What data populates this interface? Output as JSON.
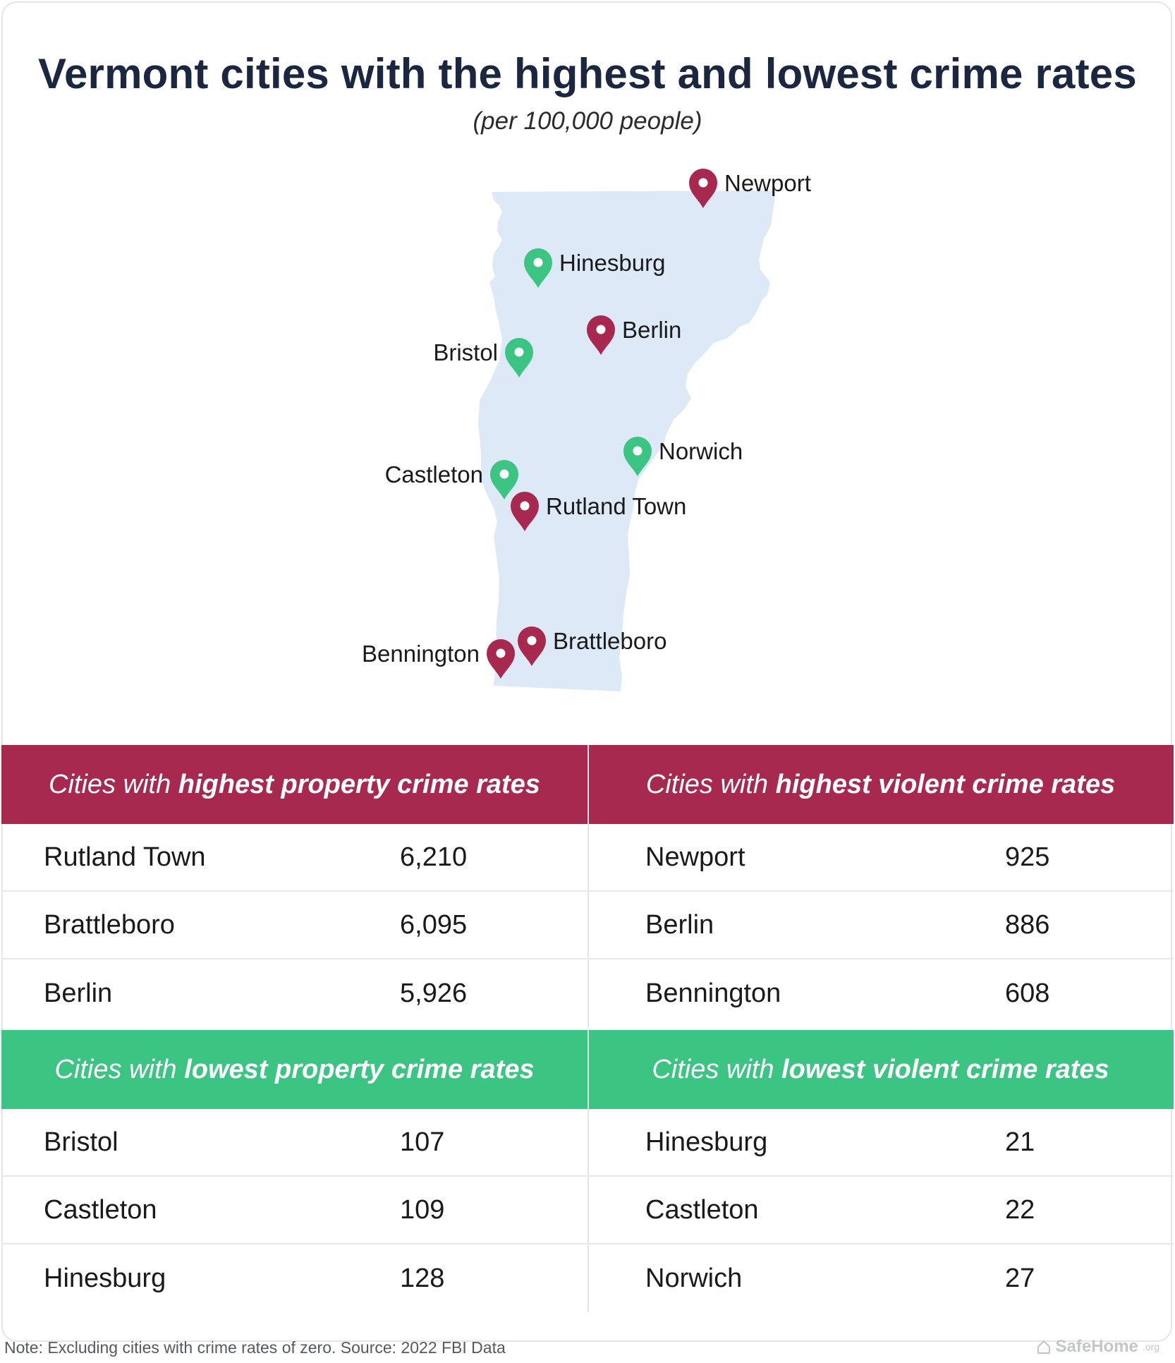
{
  "title": "Vermont cities with the highest and lowest crime rates",
  "subtitle": "(per 100,000 people)",
  "colors": {
    "high": "#a8294f",
    "low": "#3cc482",
    "state_fill": "#dde9f7",
    "title": "#1b2640"
  },
  "map": {
    "region": "Vermont",
    "markers": [
      {
        "name": "Newport",
        "category": "high"
      },
      {
        "name": "Hinesburg",
        "category": "low"
      },
      {
        "name": "Berlin",
        "category": "high"
      },
      {
        "name": "Bristol",
        "category": "low"
      },
      {
        "name": "Norwich",
        "category": "low"
      },
      {
        "name": "Castleton",
        "category": "low"
      },
      {
        "name": "Rutland Town",
        "category": "high"
      },
      {
        "name": "Brattleboro",
        "category": "high"
      },
      {
        "name": "Bennington",
        "category": "high"
      }
    ]
  },
  "tables": {
    "high_property": {
      "prefix": "Cities with ",
      "emphasis": "highest property crime rates",
      "rows": [
        {
          "city": "Rutland Town",
          "value": "6,210"
        },
        {
          "city": "Brattleboro",
          "value": "6,095"
        },
        {
          "city": "Berlin",
          "value": "5,926"
        }
      ]
    },
    "high_violent": {
      "prefix": "Cities with ",
      "emphasis": "highest violent crime rates",
      "rows": [
        {
          "city": "Newport",
          "value": "925"
        },
        {
          "city": "Berlin",
          "value": "886"
        },
        {
          "city": "Bennington",
          "value": "608"
        }
      ]
    },
    "low_property": {
      "prefix": "Cities with ",
      "emphasis": "lowest property crime rates",
      "rows": [
        {
          "city": "Bristol",
          "value": "107"
        },
        {
          "city": "Castleton",
          "value": "109"
        },
        {
          "city": "Hinesburg",
          "value": "128"
        }
      ]
    },
    "low_violent": {
      "prefix": "Cities with ",
      "emphasis": "lowest violent crime rates",
      "rows": [
        {
          "city": "Hinesburg",
          "value": "21"
        },
        {
          "city": "Castleton",
          "value": "22"
        },
        {
          "city": "Norwich",
          "value": "27"
        }
      ]
    }
  },
  "footer": {
    "note": "Note: Excluding cities with crime rates of zero. Source: 2022 FBI Data",
    "brand": "SafeHome",
    "brand_suffix": ".org",
    "brand_icon": "house-icon"
  }
}
